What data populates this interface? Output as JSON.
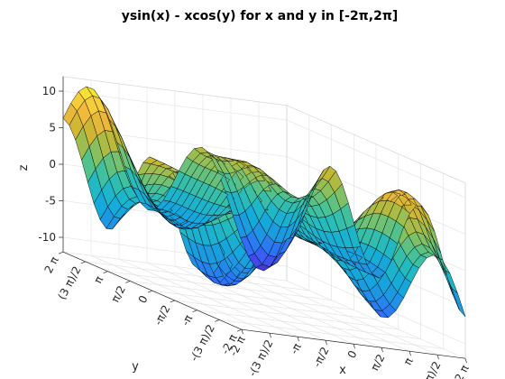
{
  "chart_data": {
    "type": "surface",
    "title": "ysin(x) - xcos(y) for x and y in [-2π,2π]",
    "function": "z = y*sin(x) - x*cos(y)",
    "xlabel": "x",
    "ylabel": "y",
    "zlabel": "z",
    "xlim": [
      -6.2832,
      6.2832
    ],
    "ylim": [
      -6.2832,
      6.2832
    ],
    "zlim": [
      -12,
      12
    ],
    "grid_points_per_axis": 30,
    "x_ticks": [
      -6.2832,
      -4.7124,
      -3.1416,
      -1.5708,
      0,
      1.5708,
      3.1416,
      4.7124,
      6.2832
    ],
    "x_tick_labels": [
      "-2 π",
      "-(3 π)/2",
      "-π",
      "-π/2",
      "0",
      "π/2",
      "π",
      "(3 π)/2",
      "2 π"
    ],
    "y_ticks": [
      -6.2832,
      -4.7124,
      -3.1416,
      -1.5708,
      0,
      1.5708,
      3.1416,
      4.7124,
      6.2832
    ],
    "y_tick_labels": [
      "-2 π",
      "-(3 π)/2",
      "-π",
      "-π/2",
      "0",
      "π/2",
      "π",
      "(3 π)/2",
      "2 π"
    ],
    "z_ticks": [
      -10,
      -5,
      0,
      5,
      10
    ],
    "z_tick_labels": [
      "-10",
      "-5",
      "0",
      "5",
      "10"
    ],
    "colormap": [
      "#3e26a8",
      "#4744e8",
      "#2f6efb",
      "#1f92e3",
      "#14aadb",
      "#22bac1",
      "#4bc293",
      "#8dc05b",
      "#c9b632",
      "#f2b93d",
      "#f8d93a",
      "#f9fb15"
    ],
    "edge_color": "#000000",
    "grid": true,
    "box": false
  }
}
